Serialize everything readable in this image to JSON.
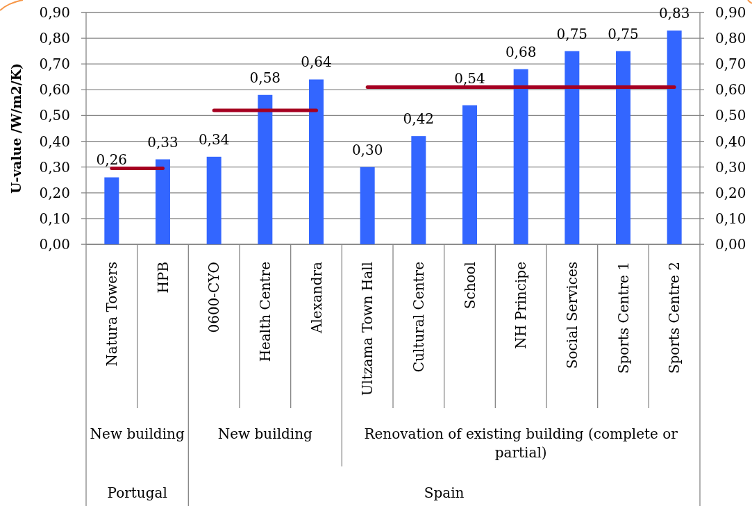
{
  "chart_data": {
    "type": "bar",
    "ylabel": "U-value /W/m2/K)",
    "categories": [
      "Natura Towers",
      "HPB",
      "0600-CYO",
      "Health Centre",
      "Alexandra",
      "Ultzama Town Hall",
      "Cultural Centre",
      "School",
      "NH Principe",
      "Social Services",
      "Sports Centre 1",
      "Sports Centre 2"
    ],
    "series": [
      {
        "color": "#3366ff",
        "values": [
          0.26,
          0.33,
          0.34,
          0.58,
          0.64,
          0.3,
          0.42,
          0.54,
          0.68,
          0.75,
          0.75,
          0.83
        ],
        "value_labels": [
          "0,26",
          "0,33",
          "0,34",
          "0,58",
          "0,64",
          "0,30",
          "0,42",
          "0,54",
          "0,68",
          "0,75",
          "0,75",
          "0,83"
        ]
      },
      {
        "type": "line",
        "color": "#a50021",
        "values": [
          0.295,
          0.295,
          null,
          null,
          null,
          null,
          null,
          null,
          null,
          null,
          null,
          null
        ]
      },
      {
        "type": "line",
        "color": "#a50021",
        "values": [
          null,
          null,
          0.52,
          0.52,
          0.52,
          null,
          null,
          null,
          null,
          null,
          null,
          null
        ]
      },
      {
        "type": "line",
        "color": "#a50021",
        "values": [
          null,
          null,
          null,
          null,
          null,
          0.61,
          0.61,
          0.61,
          0.61,
          0.61,
          0.61,
          0.61
        ]
      }
    ],
    "ylim": [
      0,
      0.9
    ],
    "yticks": [
      {
        "value": 0,
        "label": "0,00"
      },
      {
        "value": 0.1,
        "label": "0,10"
      },
      {
        "value": 0.2,
        "label": "0,20"
      },
      {
        "value": 0.3,
        "label": "0,30"
      },
      {
        "value": 0.4,
        "label": "0,40"
      },
      {
        "value": 0.5,
        "label": "0,50"
      },
      {
        "value": 0.6,
        "label": "0,60"
      },
      {
        "value": 0.7,
        "label": "0,70"
      },
      {
        "value": 0.8,
        "label": "0,80"
      },
      {
        "value": 0.9,
        "label": "0,90"
      }
    ],
    "y2lim": [
      0,
      0.9
    ],
    "y2ticks": [
      {
        "value": 0,
        "label": "0,00"
      },
      {
        "value": 0.1,
        "label": "0,10"
      },
      {
        "value": 0.2,
        "label": "0,20"
      },
      {
        "value": 0.3,
        "label": "0,30"
      },
      {
        "value": 0.4,
        "label": "0,40"
      },
      {
        "value": 0.5,
        "label": "0,50"
      },
      {
        "value": 0.6,
        "label": "0,60"
      },
      {
        "value": 0.7,
        "label": "0,70"
      },
      {
        "value": 0.8,
        "label": "0,80"
      },
      {
        "value": 0.9,
        "label": "0,90"
      }
    ],
    "grid": "y",
    "annotations": [
      "New building",
      "New building",
      "Renovation of existing building (complete or partial)",
      "Portugal",
      "Spain"
    ]
  }
}
